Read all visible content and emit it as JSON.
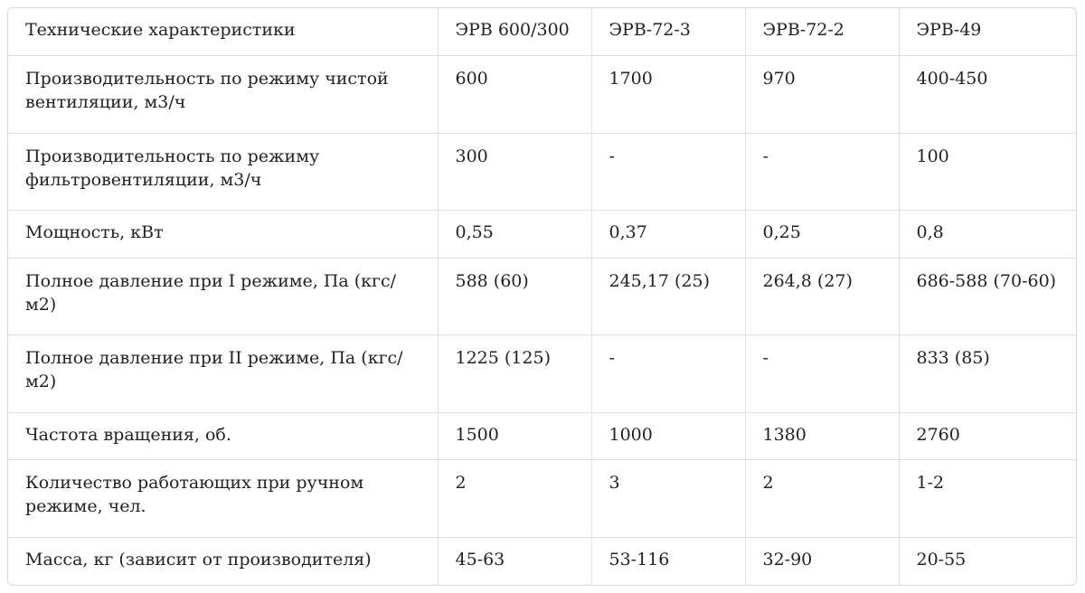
{
  "table": {
    "headers": [
      "Технические характеристики",
      "ЭРВ 600/300",
      "ЭРВ-72-3",
      "ЭРВ-72-2",
      "ЭРВ-49"
    ],
    "rows": [
      [
        "Производительность по режиму чистой вентиляции, м3/ч",
        "600",
        "1700",
        "970",
        "400-450"
      ],
      [
        "Производительность по режиму фильтровентиляции, м3/ч",
        "300",
        "-",
        "-",
        "100"
      ],
      [
        "Мощность, кВт",
        "0,55",
        "0,37",
        "0,25",
        "0,8"
      ],
      [
        "Полное давление при I режиме, Па (кгс/м2)",
        "588 (60)",
        "245,17 (25)",
        "264,8 (27)",
        "686-588 (70-60)"
      ],
      [
        "Полное давление при II режиме, Па (кгс/м2)",
        "1225 (125)",
        "-",
        "-",
        "833 (85)"
      ],
      [
        "Частота вращения, об.",
        "1500",
        "1000",
        "1380",
        "2760"
      ],
      [
        "Количество работающих при ручном режиме, чел.",
        "2",
        "3",
        "2",
        "1-2"
      ],
      [
        "Масса, кг (зависит от производителя)",
        "45-63",
        "53-116",
        "32-90",
        "20-55"
      ]
    ]
  }
}
